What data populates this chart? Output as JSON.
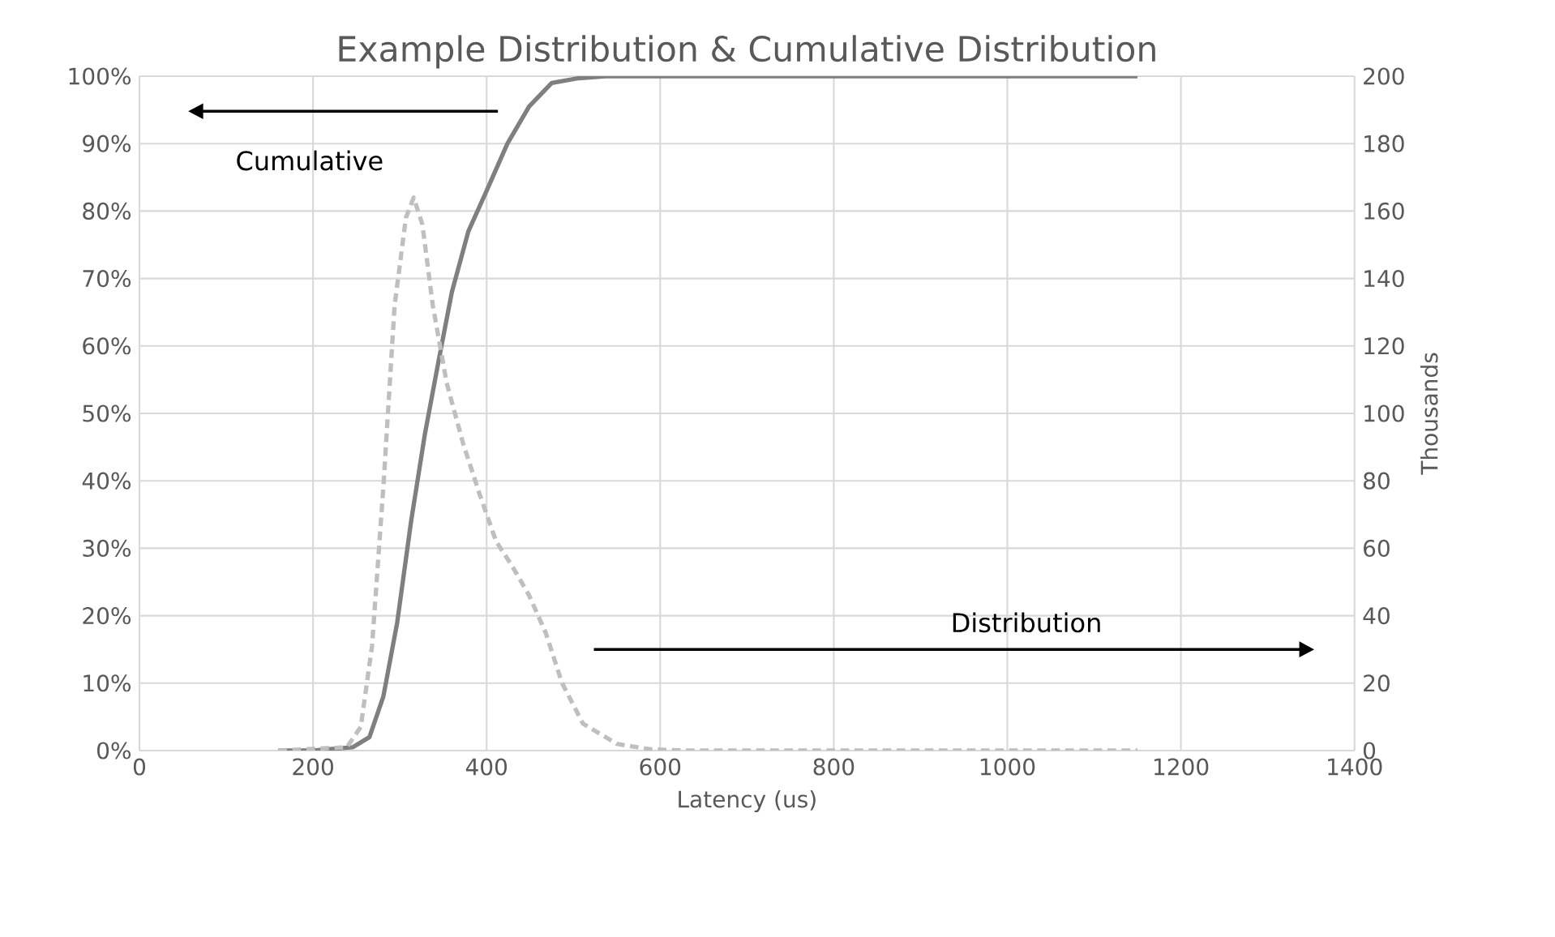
{
  "chart_data": {
    "type": "line",
    "title": "Example Distribution & Cumulative Distribution",
    "xlabel": "Latency (us)",
    "y2label": "Thousands",
    "xlim": [
      0,
      1400
    ],
    "xticks": [
      0,
      200,
      400,
      600,
      800,
      1000,
      1200,
      1400
    ],
    "ylim": [
      0,
      100
    ],
    "yticks": [
      {
        "value": 0,
        "label": "0%"
      },
      {
        "value": 10,
        "label": "10%"
      },
      {
        "value": 20,
        "label": "20%"
      },
      {
        "value": 30,
        "label": "30%"
      },
      {
        "value": 40,
        "label": "40%"
      },
      {
        "value": 50,
        "label": "50%"
      },
      {
        "value": 60,
        "label": "60%"
      },
      {
        "value": 70,
        "label": "70%"
      },
      {
        "value": 80,
        "label": "80%"
      },
      {
        "value": 90,
        "label": "90%"
      },
      {
        "value": 100,
        "label": "100%"
      }
    ],
    "y2lim": [
      0,
      200
    ],
    "y2ticks": [
      0,
      20,
      40,
      60,
      80,
      100,
      120,
      140,
      160,
      180,
      200
    ],
    "grid": true,
    "series": [
      {
        "color": "#7f7f7f",
        "line_style": "solid",
        "x": [
          160,
          200,
          246,
          265,
          281,
          297,
          313,
          329,
          345,
          360,
          379,
          400,
          424,
          449,
          475,
          506,
          537,
          1150
        ],
        "values": [
          0,
          0,
          0.5,
          2,
          8,
          19,
          34,
          47,
          58,
          68,
          77,
          83,
          90,
          95.5,
          99,
          99.7,
          100,
          100
        ]
      },
      {
        "color": "#bfbfbf",
        "line_style": "dashed",
        "axis": "y2",
        "x": [
          160,
          239,
          255,
          268,
          281,
          294,
          307,
          316,
          326,
          338,
          354,
          373,
          392,
          411,
          430,
          449,
          468,
          487,
          511,
          550,
          588,
          632,
          1150
        ],
        "values": [
          0,
          1,
          7,
          31,
          78,
          132,
          158,
          164,
          156,
          132,
          109,
          91,
          76,
          62,
          54.5,
          46,
          35,
          20,
          8,
          2,
          0.4,
          0,
          0
        ]
      }
    ],
    "annotations": [
      "Cumulative",
      "Distribution"
    ]
  }
}
